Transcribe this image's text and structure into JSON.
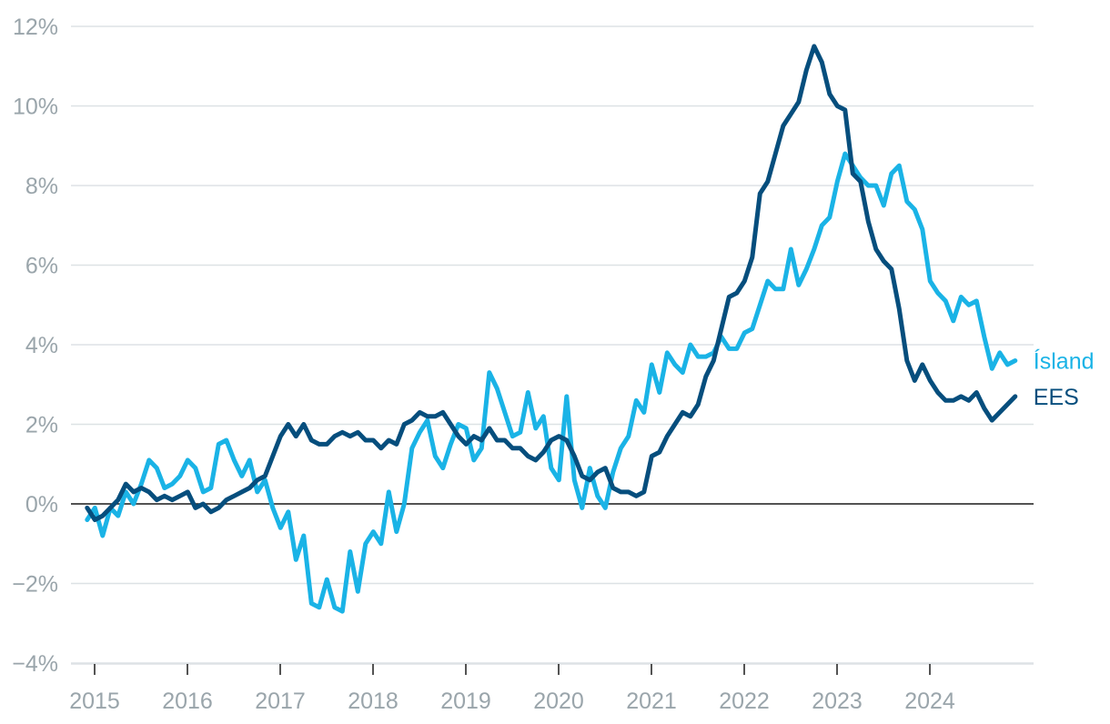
{
  "chart_data": {
    "type": "line",
    "title": "",
    "xlabel": "",
    "ylabel": "",
    "ylim": [
      -4,
      12
    ],
    "yticks": [
      -4,
      -2,
      0,
      2,
      4,
      6,
      8,
      10,
      12
    ],
    "ytick_labels": [
      "−4%",
      "−2%",
      "0%",
      "2%",
      "4%",
      "6%",
      "8%",
      "10%",
      "12%"
    ],
    "xlim": [
      2015.0,
      2025.0
    ],
    "xticks": [
      2015,
      2016,
      2017,
      2018,
      2019,
      2020,
      2021,
      2022,
      2023,
      2024
    ],
    "xtick_labels": [
      "2015",
      "2016",
      "2017",
      "2018",
      "2019",
      "2020",
      "2021",
      "2022",
      "2023",
      "2024"
    ],
    "grid": true,
    "legend": "inline-right",
    "colors": {
      "island": "#1ab3e6",
      "ees": "#064e7d",
      "zero": "#1a1a1a",
      "grid": "#dde2e5",
      "tick_text": "#9aa5ab"
    },
    "series": [
      {
        "name": "Ísland",
        "key": "island",
        "start": 2014.92,
        "step": 0.08333,
        "values": [
          -0.4,
          -0.1,
          -0.8,
          -0.1,
          -0.3,
          0.3,
          0.0,
          0.5,
          1.1,
          0.9,
          0.4,
          0.5,
          0.7,
          1.1,
          0.9,
          0.3,
          0.4,
          1.5,
          1.6,
          1.1,
          0.7,
          1.1,
          0.3,
          0.6,
          -0.1,
          -0.6,
          -0.2,
          -1.4,
          -0.8,
          -2.5,
          -2.6,
          -1.9,
          -2.6,
          -2.7,
          -1.2,
          -2.2,
          -1.0,
          -0.7,
          -1.0,
          0.3,
          -0.7,
          0.0,
          1.4,
          1.8,
          2.1,
          1.2,
          0.9,
          1.5,
          2.0,
          1.9,
          1.1,
          1.4,
          3.3,
          2.9,
          2.3,
          1.7,
          1.8,
          2.8,
          1.9,
          2.2,
          0.9,
          0.6,
          2.7,
          0.6,
          -0.1,
          0.9,
          0.2,
          -0.1,
          0.8,
          1.4,
          1.7,
          2.6,
          2.3,
          3.5,
          2.8,
          3.8,
          3.5,
          3.3,
          4.0,
          3.7,
          3.7,
          3.8,
          4.2,
          3.9,
          3.9,
          4.3,
          4.4,
          5.0,
          5.6,
          5.4,
          5.4,
          6.4,
          5.5,
          5.9,
          6.4,
          7.0,
          7.2,
          8.1,
          8.8,
          8.5,
          8.2,
          8.0,
          8.0,
          7.5,
          8.3,
          8.5,
          7.6,
          7.4,
          6.9,
          5.6,
          5.3,
          5.1,
          4.6,
          5.2,
          5.0,
          5.1,
          4.2,
          3.4,
          3.8,
          3.5,
          3.6
        ]
      },
      {
        "name": "EES",
        "key": "ees",
        "start": 2014.92,
        "step": 0.08333,
        "values": [
          -0.1,
          -0.4,
          -0.3,
          -0.1,
          0.1,
          0.5,
          0.3,
          0.4,
          0.3,
          0.1,
          0.2,
          0.1,
          0.2,
          0.3,
          -0.1,
          0.0,
          -0.2,
          -0.1,
          0.1,
          0.2,
          0.3,
          0.4,
          0.6,
          0.7,
          1.2,
          1.7,
          2.0,
          1.7,
          2.0,
          1.6,
          1.5,
          1.5,
          1.7,
          1.8,
          1.7,
          1.8,
          1.6,
          1.6,
          1.4,
          1.6,
          1.5,
          2.0,
          2.1,
          2.3,
          2.2,
          2.2,
          2.3,
          2.0,
          1.7,
          1.5,
          1.7,
          1.6,
          1.9,
          1.6,
          1.6,
          1.4,
          1.4,
          1.2,
          1.1,
          1.3,
          1.6,
          1.7,
          1.6,
          1.2,
          0.7,
          0.6,
          0.8,
          0.9,
          0.4,
          0.3,
          0.3,
          0.2,
          0.3,
          1.2,
          1.3,
          1.7,
          2.0,
          2.3,
          2.2,
          2.5,
          3.2,
          3.6,
          4.4,
          5.2,
          5.3,
          5.6,
          6.2,
          7.8,
          8.1,
          8.8,
          9.5,
          9.8,
          10.1,
          10.9,
          11.5,
          11.1,
          10.3,
          10.0,
          9.9,
          8.3,
          8.1,
          7.1,
          6.4,
          6.1,
          5.9,
          4.9,
          3.6,
          3.1,
          3.5,
          3.1,
          2.8,
          2.6,
          2.6,
          2.7,
          2.6,
          2.8,
          2.4,
          2.1,
          2.3,
          2.5,
          2.7
        ]
      }
    ]
  }
}
